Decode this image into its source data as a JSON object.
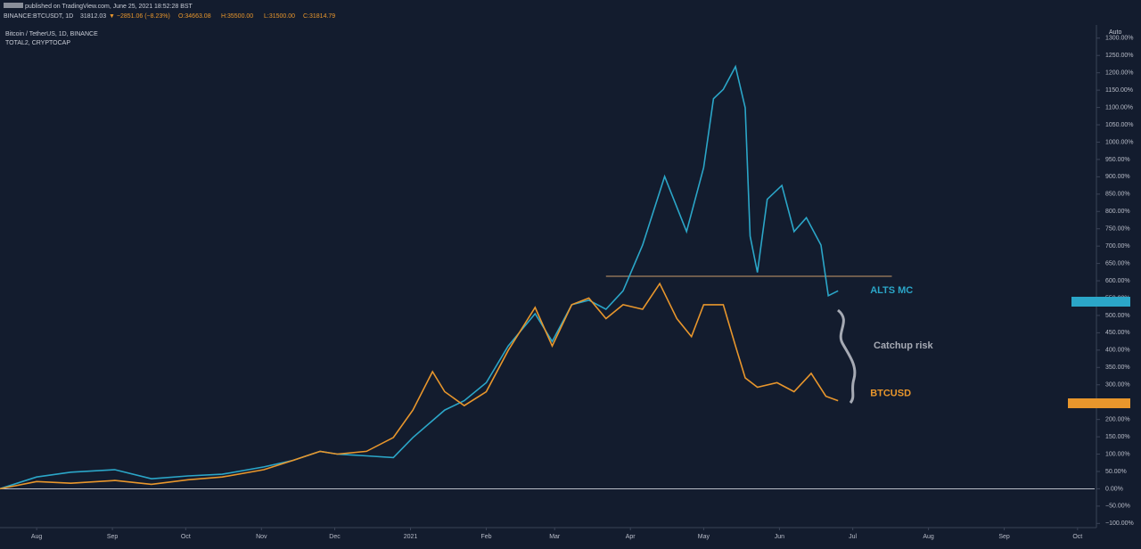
{
  "header": {
    "published": "published on TradingView.com, June 25, 2021 18:52:28 BST",
    "symbol": "BINANCE:BTCUSDT, 1D",
    "last": "31812.03",
    "change": "▼ −2851.06 (−8.23%)",
    "open": "O:34663.08",
    "high": "H:35500.00",
    "low": "L:31500.00",
    "close": "C:31814.79"
  },
  "chart_data": {
    "type": "line",
    "title": "Bitcoin / TetherUS, 1D, BINANCE",
    "subtitle": "TOTAL2, CRYPTOCAP",
    "scale_mode": "Auto",
    "xlim": [
      0,
      448
    ],
    "xticks": [
      {
        "value": 15,
        "label": "Aug"
      },
      {
        "value": 46,
        "label": "Sep"
      },
      {
        "value": 76,
        "label": "Oct"
      },
      {
        "value": 107,
        "label": "Nov"
      },
      {
        "value": 137,
        "label": "Dec"
      },
      {
        "value": 168,
        "label": "2021"
      },
      {
        "value": 199,
        "label": "Feb"
      },
      {
        "value": 227,
        "label": "Mar"
      },
      {
        "value": 258,
        "label": "Apr"
      },
      {
        "value": 288,
        "label": "May"
      },
      {
        "value": 319,
        "label": "Jun"
      },
      {
        "value": 349,
        "label": "Jul"
      },
      {
        "value": 380,
        "label": "Aug"
      },
      {
        "value": 411,
        "label": "Sep"
      },
      {
        "value": 441,
        "label": "Oct"
      }
    ],
    "ylim": [
      -112,
      1338
    ],
    "yticks": [
      {
        "value": -100,
        "label": "−100.00%"
      },
      {
        "value": -50,
        "label": "−50.00%"
      },
      {
        "value": 0,
        "label": "0.00%"
      },
      {
        "value": 50,
        "label": "50.00%"
      },
      {
        "value": 100,
        "label": "100.00%"
      },
      {
        "value": 150,
        "label": "150.00%"
      },
      {
        "value": 200,
        "label": "200.00%"
      },
      {
        "value": 250,
        "label": "250.00%"
      },
      {
        "value": 300,
        "label": "300.00%"
      },
      {
        "value": 350,
        "label": "350.00%"
      },
      {
        "value": 400,
        "label": "400.00%"
      },
      {
        "value": 450,
        "label": "450.00%"
      },
      {
        "value": 500,
        "label": "500.00%"
      },
      {
        "value": 550,
        "label": "550.00%"
      },
      {
        "value": 600,
        "label": "600.00%"
      },
      {
        "value": 650,
        "label": "650.00%"
      },
      {
        "value": 700,
        "label": "700.00%"
      },
      {
        "value": 750,
        "label": "750.00%"
      },
      {
        "value": 800,
        "label": "800.00%"
      },
      {
        "value": 850,
        "label": "850.00%"
      },
      {
        "value": 900,
        "label": "900.00%"
      },
      {
        "value": 950,
        "label": "950.00%"
      },
      {
        "value": 1000,
        "label": "1000.00%"
      },
      {
        "value": 1050,
        "label": "1050.00%"
      },
      {
        "value": 1100,
        "label": "1100.00%"
      },
      {
        "value": 1150,
        "label": "1150.00%"
      },
      {
        "value": 1200,
        "label": "1200.00%"
      },
      {
        "value": 1250,
        "label": "1250.00%"
      },
      {
        "value": 1300,
        "label": "1300.00%"
      }
    ],
    "series": [
      {
        "name": "ALTS MC",
        "color": "#2ba6c8",
        "x": [
          0,
          15,
          29,
          47,
          62,
          77,
          91,
          108,
          120,
          131,
          138,
          150,
          161,
          169,
          182,
          190,
          199,
          208,
          219,
          226,
          234,
          241,
          248,
          255,
          263,
          272,
          281,
          288,
          292,
          296,
          301,
          305,
          307,
          310,
          314,
          320,
          325,
          330,
          336,
          339,
          343
        ],
        "values": [
          0,
          34,
          48,
          55,
          29,
          37,
          42,
          63,
          82,
          108,
          100,
          95,
          90,
          148,
          227,
          254,
          306,
          412,
          505,
          425,
          531,
          544,
          518,
          571,
          703,
          901,
          742,
          927,
          1125,
          1152,
          1218,
          1099,
          729,
          624,
          835,
          875,
          742,
          782,
          703,
          557,
          571
        ]
      },
      {
        "name": "BTCUSD",
        "color": "#e8962c",
        "x": [
          0,
          15,
          29,
          47,
          62,
          77,
          91,
          108,
          120,
          131,
          138,
          150,
          161,
          169,
          177,
          182,
          190,
          199,
          208,
          219,
          226,
          234,
          241,
          248,
          255,
          263,
          270,
          277,
          283,
          288,
          296,
          301,
          305,
          310,
          318,
          325,
          332,
          338,
          343
        ],
        "values": [
          0,
          21,
          16,
          24,
          13,
          26,
          34,
          55,
          82,
          108,
          100,
          108,
          148,
          227,
          338,
          280,
          240,
          280,
          399,
          523,
          412,
          531,
          550,
          491,
          531,
          518,
          592,
          491,
          439,
          531,
          531,
          412,
          320,
          293,
          306,
          280,
          333,
          267,
          254
        ]
      }
    ],
    "level": {
      "value": 613,
      "x": [
        248,
        365
      ],
      "color": "#c89a6a"
    },
    "annotation": "Catchup risk"
  }
}
